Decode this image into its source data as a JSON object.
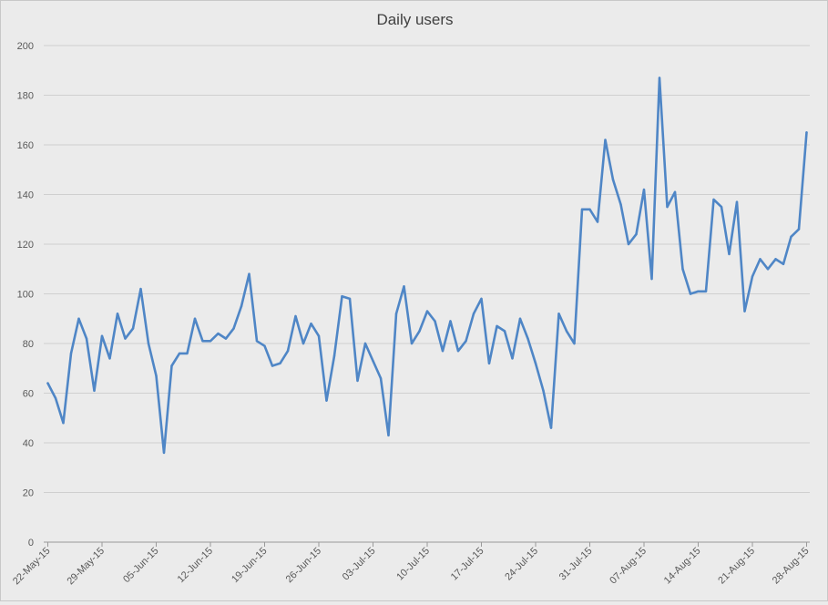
{
  "chart_data": {
    "type": "line",
    "title": "Daily users",
    "xlabel": "",
    "ylabel": "",
    "ylim": [
      0,
      200
    ],
    "yticks": [
      0,
      20,
      40,
      60,
      80,
      100,
      120,
      140,
      160,
      180,
      200
    ],
    "xticks": [
      "22-May-15",
      "29-May-15",
      "05-Jun-15",
      "12-Jun-15",
      "19-Jun-15",
      "26-Jun-15",
      "03-Jul-15",
      "10-Jul-15",
      "17-Jul-15",
      "24-Jul-15",
      "31-Jul-15",
      "07-Aug-15",
      "14-Aug-15",
      "21-Aug-15",
      "28-Aug-15"
    ],
    "x_start": "22-May-15",
    "x_end": "28-Aug-15",
    "grid": true,
    "legend": "none",
    "series": [
      {
        "color": "#4f86c6",
        "values": [
          64,
          58,
          48,
          76,
          90,
          82,
          61,
          83,
          74,
          92,
          82,
          86,
          102,
          80,
          67,
          36,
          71,
          76,
          76,
          90,
          81,
          81,
          84,
          82,
          86,
          95,
          108,
          81,
          79,
          71,
          72,
          77,
          91,
          80,
          88,
          83,
          57,
          75,
          99,
          98,
          65,
          80,
          73,
          66,
          43,
          92,
          103,
          80,
          85,
          93,
          89,
          77,
          89,
          77,
          81,
          92,
          98,
          72,
          87,
          85,
          74,
          90,
          82,
          72,
          61,
          46,
          92,
          85,
          80,
          134,
          134,
          129,
          162,
          146,
          136,
          120,
          124,
          142,
          106,
          187,
          135,
          141,
          110,
          100,
          101,
          101,
          138,
          135,
          116,
          137,
          93,
          107,
          114,
          110,
          114,
          112,
          123,
          126,
          165
        ]
      }
    ]
  }
}
